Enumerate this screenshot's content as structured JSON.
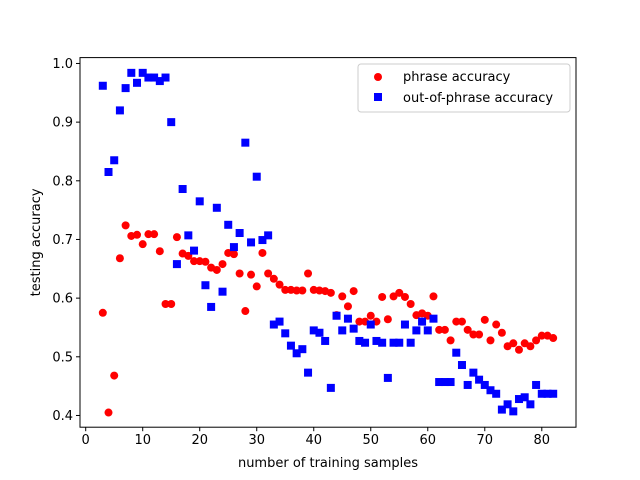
{
  "chart_data": {
    "type": "scatter",
    "title": "",
    "xlabel": "number of training samples",
    "ylabel": "testing accuracy",
    "xlim": [
      -1,
      86
    ],
    "ylim": [
      0.38,
      1.01
    ],
    "xticks": [
      0,
      10,
      20,
      30,
      40,
      50,
      60,
      70,
      80
    ],
    "yticks": [
      0.4,
      0.5,
      0.6,
      0.7,
      0.8,
      0.9,
      1.0
    ],
    "xtick_labels": [
      "0",
      "10",
      "20",
      "30",
      "40",
      "50",
      "60",
      "70",
      "80"
    ],
    "ytick_labels": [
      "0.4",
      "0.5",
      "0.6",
      "0.7",
      "0.8",
      "0.9",
      "1.0"
    ],
    "grid": false,
    "legend_position": "top-right",
    "series": [
      {
        "name": "phrase accuracy",
        "marker": "circle",
        "color": "#ff0000",
        "x": [
          3,
          4,
          5,
          6,
          7,
          8,
          9,
          10,
          11,
          12,
          13,
          14,
          15,
          16,
          17,
          18,
          19,
          20,
          21,
          22,
          23,
          24,
          25,
          26,
          27,
          28,
          29,
          30,
          31,
          32,
          33,
          34,
          35,
          36,
          37,
          38,
          39,
          40,
          41,
          42,
          43,
          44,
          45,
          46,
          47,
          48,
          49,
          50,
          51,
          52,
          53,
          54,
          55,
          56,
          57,
          58,
          59,
          60,
          61,
          62,
          63,
          64,
          65,
          66,
          67,
          68,
          69,
          70,
          71,
          72,
          73,
          74,
          75,
          76,
          77,
          78,
          79,
          80,
          81,
          82
        ],
        "y": [
          0.575,
          0.405,
          0.468,
          0.668,
          0.724,
          0.706,
          0.708,
          0.692,
          0.709,
          0.709,
          0.68,
          0.59,
          0.59,
          0.704,
          0.676,
          0.672,
          0.663,
          0.663,
          0.662,
          0.652,
          0.648,
          0.658,
          0.677,
          0.675,
          0.642,
          0.578,
          0.64,
          0.62,
          0.677,
          0.642,
          0.633,
          0.623,
          0.614,
          0.614,
          0.613,
          0.613,
          0.642,
          0.614,
          0.613,
          0.612,
          0.609,
          0.571,
          0.603,
          0.586,
          0.612,
          0.56,
          0.56,
          0.57,
          0.56,
          0.602,
          0.564,
          0.603,
          0.609,
          0.602,
          0.59,
          0.571,
          0.574,
          0.57,
          0.603,
          0.546,
          0.546,
          0.528,
          0.56,
          0.56,
          0.546,
          0.538,
          0.538,
          0.563,
          0.528,
          0.555,
          0.541,
          0.518,
          0.523,
          0.512,
          0.523,
          0.518,
          0.528,
          0.536,
          0.536,
          0.532
        ]
      },
      {
        "name": "out-of-phrase accuracy",
        "marker": "square",
        "color": "#0000ff",
        "x": [
          3,
          4,
          5,
          6,
          7,
          8,
          9,
          10,
          11,
          12,
          13,
          14,
          15,
          16,
          17,
          18,
          19,
          20,
          21,
          22,
          23,
          24,
          25,
          26,
          27,
          28,
          29,
          30,
          31,
          32,
          33,
          34,
          35,
          36,
          37,
          38,
          39,
          40,
          41,
          42,
          43,
          44,
          45,
          46,
          47,
          48,
          49,
          50,
          51,
          52,
          53,
          54,
          55,
          56,
          57,
          58,
          59,
          60,
          61,
          62,
          63,
          64,
          65,
          66,
          67,
          68,
          69,
          70,
          71,
          72,
          73,
          74,
          75,
          76,
          77,
          78,
          79,
          80,
          81,
          82
        ],
        "y": [
          0.962,
          0.815,
          0.835,
          0.92,
          0.958,
          0.984,
          0.967,
          0.984,
          0.976,
          0.976,
          0.97,
          0.976,
          0.9,
          0.658,
          0.786,
          0.707,
          0.681,
          0.765,
          0.622,
          0.585,
          0.754,
          0.611,
          0.725,
          0.687,
          0.711,
          0.865,
          0.695,
          0.807,
          0.699,
          0.707,
          0.555,
          0.56,
          0.54,
          0.519,
          0.506,
          0.513,
          0.473,
          0.545,
          0.541,
          0.527,
          0.447,
          0.57,
          0.545,
          0.565,
          0.548,
          0.527,
          0.524,
          0.555,
          0.527,
          0.524,
          0.464,
          0.524,
          0.524,
          0.555,
          0.524,
          0.545,
          0.56,
          0.545,
          0.565,
          0.457,
          0.457,
          0.457,
          0.507,
          0.486,
          0.452,
          0.473,
          0.461,
          0.452,
          0.443,
          0.437,
          0.41,
          0.419,
          0.407,
          0.428,
          0.431,
          0.419,
          0.452,
          0.437,
          0.437,
          0.437
        ]
      }
    ]
  }
}
